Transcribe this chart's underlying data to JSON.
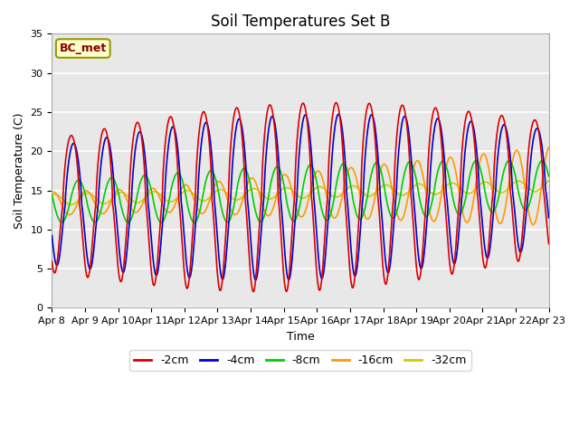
{
  "title": "Soil Temperatures Set B",
  "xlabel": "Time",
  "ylabel": "Soil Temperature (C)",
  "ylim": [
    0,
    35
  ],
  "yticks": [
    0,
    5,
    10,
    15,
    20,
    25,
    30,
    35
  ],
  "annotation": "BC_met",
  "legend_labels": [
    "-2cm",
    "-4cm",
    "-8cm",
    "-16cm",
    "-32cm"
  ],
  "legend_colors": [
    "#dd0000",
    "#0000cc",
    "#00cc00",
    "#ff9900",
    "#cccc00"
  ],
  "start_day": 8,
  "end_day": 23,
  "n_points": 1500,
  "plot_bg_color": "#e8e8e8",
  "title_fontsize": 12,
  "axis_fontsize": 9,
  "tick_fontsize": 8
}
